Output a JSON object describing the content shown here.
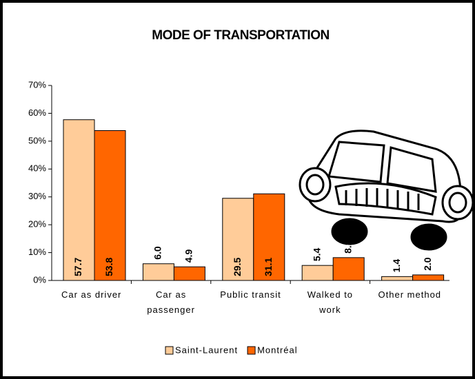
{
  "chart_data": {
    "type": "bar",
    "title": "MODE OF TRANSPORTATION",
    "categories": [
      "Car as driver",
      "Car as passenger",
      "Public transit",
      "Walked to work",
      "Other method"
    ],
    "series": [
      {
        "name": "Saint-Laurent",
        "color": "#FFCC99",
        "values": [
          57.7,
          6,
          29.5,
          5.4,
          1.4
        ],
        "value_labels": [
          "57.7",
          "6.0",
          "29.5",
          "5.4",
          "1.4"
        ]
      },
      {
        "name": "Montréal",
        "color": "#FF6600",
        "values": [
          53.8,
          4.9,
          31.1,
          8.2,
          2
        ],
        "value_labels": [
          "53.8",
          "4.9",
          "31.1",
          "8.2",
          "2.0"
        ]
      }
    ],
    "ylim": [
      0,
      70
    ],
    "yticks": [
      {
        "value": 0,
        "label": "0%"
      },
      {
        "value": 10,
        "label": "10%"
      },
      {
        "value": 20,
        "label": "20%"
      },
      {
        "value": 30,
        "label": "30%"
      },
      {
        "value": 40,
        "label": "40%"
      },
      {
        "value": 50,
        "label": "50%"
      },
      {
        "value": 60,
        "label": "60%"
      },
      {
        "value": 70,
        "label": "70%"
      }
    ],
    "legend": "bottom"
  }
}
